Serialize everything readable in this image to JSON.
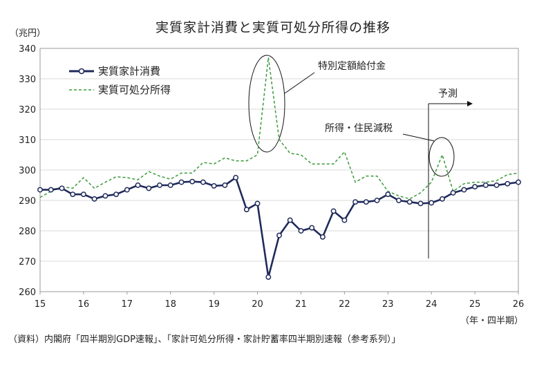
{
  "chart_data": {
    "type": "line",
    "title": "実質家計消費と実質可処分所得の推移",
    "y_unit_label": "（兆円）",
    "x_unit_label": "（年・四半期）",
    "ylim": [
      260,
      340
    ],
    "yticks": [
      260,
      270,
      280,
      290,
      300,
      310,
      320,
      330,
      340
    ],
    "xlim": [
      15,
      26
    ],
    "xticks": [
      15,
      16,
      17,
      18,
      19,
      20,
      21,
      22,
      23,
      24,
      25,
      26
    ],
    "grid": "horizontal",
    "legend_position": "top-left",
    "series": [
      {
        "name": "実質家計消費",
        "style": "solid-with-circle-markers",
        "color": "#1f2a5a",
        "x": [
          15.0,
          15.25,
          15.5,
          15.75,
          16.0,
          16.25,
          16.5,
          16.75,
          17.0,
          17.25,
          17.5,
          17.75,
          18.0,
          18.25,
          18.5,
          18.75,
          19.0,
          19.25,
          19.5,
          19.75,
          20.0,
          20.25,
          20.5,
          20.75,
          21.0,
          21.25,
          21.5,
          21.75,
          22.0,
          22.25,
          22.5,
          22.75,
          23.0,
          23.25,
          23.5,
          23.75,
          24.0,
          24.25,
          24.5,
          24.75,
          25.0,
          25.25,
          25.5,
          25.75,
          26.0
        ],
        "y": [
          293.5,
          293.5,
          294.0,
          292.0,
          292.0,
          290.5,
          291.5,
          292.0,
          293.5,
          295.0,
          294.0,
          295.0,
          295.0,
          296.0,
          296.2,
          296.0,
          294.8,
          295.0,
          297.5,
          287.0,
          289.0,
          264.8,
          278.5,
          283.5,
          280.0,
          281.0,
          278.0,
          286.5,
          283.5,
          289.5,
          289.5,
          290.0,
          292.0,
          290.0,
          289.5,
          289.0,
          289.2,
          290.5,
          292.5,
          293.5,
          294.5,
          295.0,
          295.0,
          295.5,
          296.0
        ]
      },
      {
        "name": "実質可処分所得",
        "style": "dashed",
        "color": "#3a9a3a",
        "x": [
          15.0,
          15.25,
          15.5,
          15.75,
          16.0,
          16.25,
          16.5,
          16.75,
          17.0,
          17.25,
          17.5,
          17.75,
          18.0,
          18.25,
          18.5,
          18.75,
          19.0,
          19.25,
          19.5,
          19.75,
          20.0,
          20.25,
          20.5,
          20.75,
          21.0,
          21.25,
          21.5,
          21.75,
          22.0,
          22.25,
          22.5,
          22.75,
          23.0,
          23.25,
          23.5,
          23.75,
          24.0,
          24.25,
          24.5,
          24.75,
          25.0,
          25.25,
          25.5,
          25.75,
          26.0
        ],
        "y": [
          291.0,
          293.0,
          294.5,
          294.0,
          297.5,
          294.0,
          296.0,
          297.8,
          297.5,
          296.8,
          299.5,
          298.0,
          297.0,
          299.0,
          299.0,
          302.5,
          302.0,
          304.0,
          303.0,
          303.0,
          305.0,
          337.0,
          310.0,
          305.5,
          305.0,
          302.0,
          302.0,
          302.0,
          306.0,
          296.0,
          298.0,
          298.0,
          293.0,
          291.5,
          290.5,
          292.5,
          296.0,
          305.0,
          293.0,
          295.5,
          296.0,
          296.0,
          296.5,
          298.5,
          299.0
        ]
      }
    ],
    "annotations": [
      {
        "text": "特別定額給付金"
      },
      {
        "text": "所得・住民減税"
      },
      {
        "text": "予測"
      }
    ]
  },
  "source_note": "（資料）内閣府「四半期別GDP速報」、「家計可処分所得・家計貯蓄率四半期別速報（参考系列）」"
}
